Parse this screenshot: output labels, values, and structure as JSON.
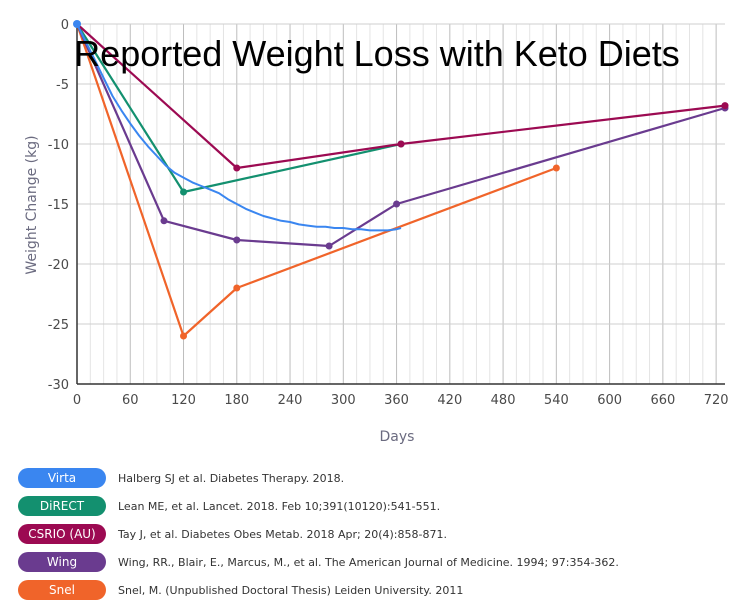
{
  "chart_data": {
    "type": "line",
    "title": "Reported Weight Loss with Keto Diets",
    "xlabel": "Days",
    "ylabel": "Weight Change (kg)",
    "xlim": [
      0,
      730
    ],
    "ylim": [
      -30,
      0
    ],
    "xticks": [
      0,
      60,
      120,
      180,
      240,
      300,
      360,
      420,
      480,
      540,
      600,
      660,
      720
    ],
    "yticks": [
      0,
      -5,
      -10,
      -15,
      -20,
      -25,
      -30
    ],
    "grid": true,
    "series": [
      {
        "name": "Virta",
        "color": "#3a86f0",
        "citation": "Halberg SJ et al. Diabetes Therapy. 2018.",
        "markers": false,
        "x": [
          0,
          10,
          20,
          30,
          40,
          50,
          60,
          70,
          80,
          90,
          100,
          110,
          120,
          130,
          140,
          150,
          160,
          170,
          180,
          190,
          200,
          210,
          220,
          230,
          240,
          250,
          260,
          270,
          280,
          290,
          300,
          310,
          320,
          330,
          340,
          350,
          360,
          365
        ],
        "y": [
          0,
          -1.5,
          -3,
          -4.5,
          -6,
          -7.2,
          -8.3,
          -9.3,
          -10.2,
          -11,
          -11.8,
          -12.4,
          -12.8,
          -13.2,
          -13.5,
          -13.8,
          -14.1,
          -14.6,
          -15,
          -15.4,
          -15.7,
          -16,
          -16.2,
          -16.4,
          -16.5,
          -16.7,
          -16.8,
          -16.9,
          -16.9,
          -17,
          -17,
          -17.1,
          -17.1,
          -17.2,
          -17.2,
          -17.2,
          -17.1,
          -17
        ]
      },
      {
        "name": "DiRECT",
        "color": "#13906f",
        "citation": "Lean ME, et al. Lancet. 2018. Feb 10;391(10120):541-551.",
        "markers": true,
        "x": [
          0,
          120,
          365
        ],
        "y": [
          0,
          -14,
          -10
        ]
      },
      {
        "name": "CSRIO (AU)",
        "color": "#9c0a52",
        "citation": "Tay J, et al. Diabetes Obes Metab. 2018 Apr; 20(4):858-871.",
        "markers": true,
        "x": [
          0,
          180,
          365,
          730
        ],
        "y": [
          0,
          -12,
          -10,
          -6.8
        ]
      },
      {
        "name": "Wing",
        "color": "#6a3b8f",
        "citation": "Wing, RR., Blair, E., Marcus, M., et al. The American Journal of Medicine. 1994; 97:354-362.",
        "markers": true,
        "x": [
          0,
          98,
          180,
          284,
          360,
          730
        ],
        "y": [
          0,
          -16.4,
          -18,
          -18.5,
          -15,
          -7
        ]
      },
      {
        "name": "Snel",
        "color": "#f0642a",
        "citation": "Snel, M. (Unpublished Doctoral Thesis) Leiden University. 2011",
        "markers": true,
        "x": [
          0,
          120,
          180,
          540
        ],
        "y": [
          0,
          -26,
          -22,
          -12
        ]
      }
    ]
  }
}
